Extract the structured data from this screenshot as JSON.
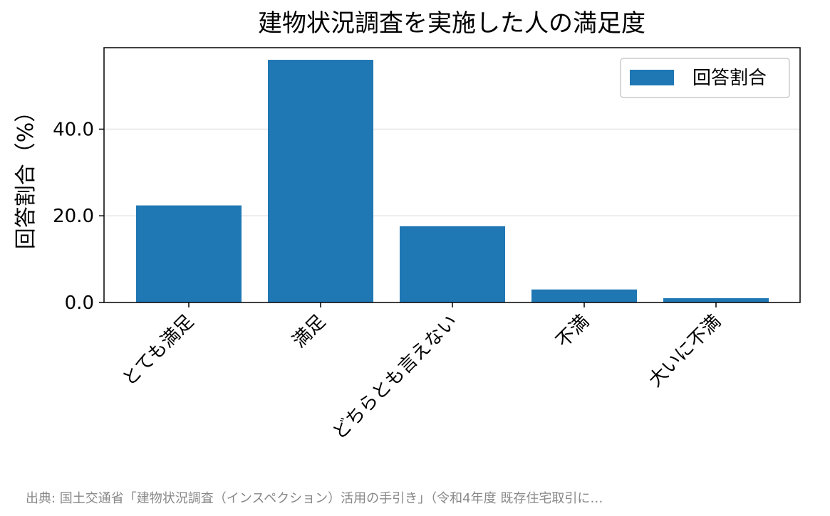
{
  "chart_data": {
    "type": "bar",
    "title": "建物状況調査を実施した人の満足度",
    "categories": [
      "とても満足",
      "満足",
      "どちらとも言えない",
      "不満",
      "大いに不満"
    ],
    "series": [
      {
        "name": "回答割合",
        "values": [
          22.4,
          56.0,
          17.6,
          3.0,
          1.0
        ],
        "color": "#1f77b4"
      }
    ],
    "xlabel": "",
    "ylabel": "回答割合（%）",
    "ylim": [
      0,
      58.8
    ],
    "yticks": [
      0,
      20,
      40
    ],
    "ytick_labels": [
      "0.0",
      "20.0",
      "40.0"
    ],
    "grid": "horizontal",
    "legend_position": "top-right",
    "source_note": "出典: 国土交通省「建物状況調査（インスペクション）活用の手引き」（令和4年度 既存住宅取引に…"
  }
}
